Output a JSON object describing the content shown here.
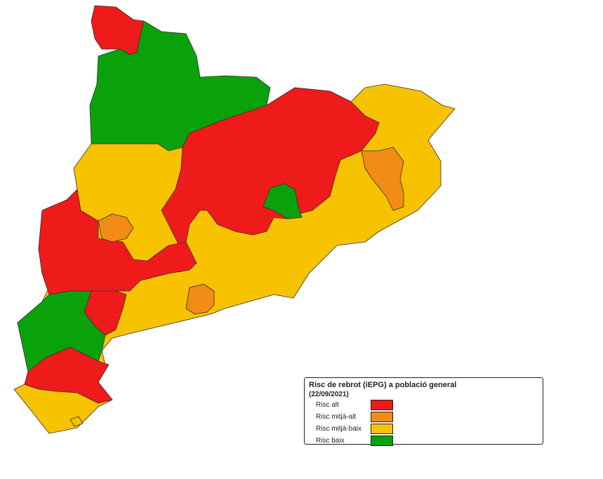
{
  "legend": {
    "title": "Risc de rebrot (iEPG) a població general",
    "date": "(22/09/2021)",
    "items": [
      {
        "label": "Risc alt",
        "color": "#ef1a1a"
      },
      {
        "label": "Risc mitjà-alt",
        "color": "#f28c14"
      },
      {
        "label": "Risc mitjà-baix",
        "color": "#f7c200"
      },
      {
        "label": "Risc baix",
        "color": "#0aa20a"
      }
    ]
  },
  "colors": {
    "high": "#ef1a1a",
    "mid_high": "#f28c14",
    "mid_low": "#f7c200",
    "low": "#0aa20a",
    "border": "#333333"
  }
}
